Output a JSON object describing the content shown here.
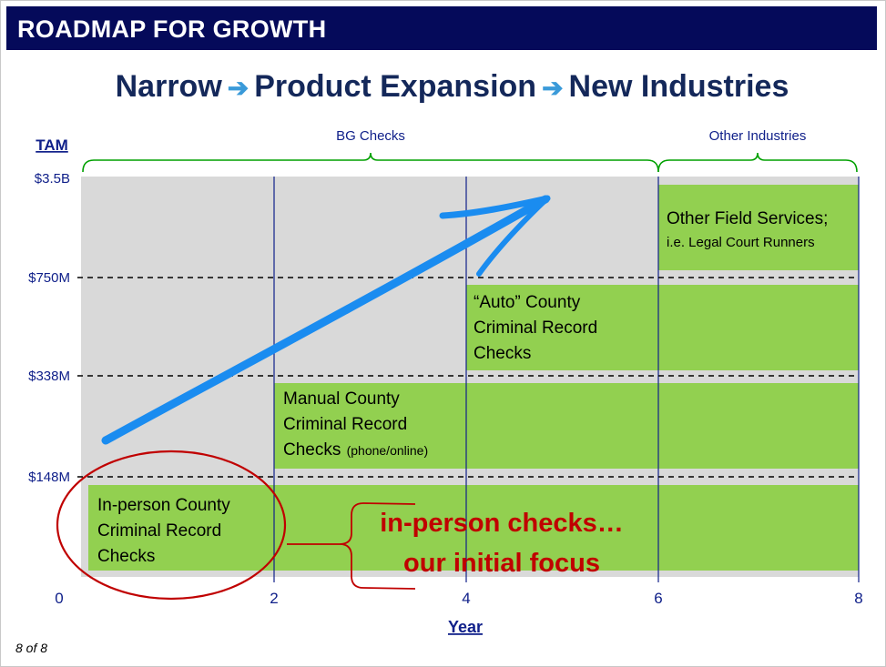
{
  "header": {
    "title": "ROADMAP FOR GROWTH"
  },
  "footer": {
    "page": "8 of 8"
  },
  "colors": {
    "header_bg": "#050a5a",
    "block_green": "#92d050",
    "plot_bg": "#d9d9d9",
    "axis_blue": "#10208a",
    "arrow_blue": "#1a8cf0",
    "annotation_red": "#c00000",
    "bracket_green": "#00a000"
  },
  "chart_data": {
    "type": "area",
    "title_parts": [
      "Narrow",
      "Product Expansion",
      "New Industries"
    ],
    "ylabel": "TAM",
    "xlabel": "Year",
    "x_ticks": [
      "0",
      "2",
      "4",
      "6",
      "8"
    ],
    "y_ticks": [
      "$148M",
      "$338M",
      "$750M",
      "$3.5B"
    ],
    "xlim": [
      0,
      8
    ],
    "brackets": [
      {
        "label": "BG Checks",
        "x_start": 0.25,
        "x_end": 6
      },
      {
        "label": "Other Industries",
        "x_start": 6,
        "x_end": 8
      }
    ],
    "blocks": [
      {
        "name": "in-person",
        "x_start": 0.3,
        "x_end": 2,
        "tier_bottom": 0,
        "tier_top": 1,
        "lines": [
          "In-person County",
          "Criminal Record",
          "Checks"
        ],
        "suffix": ""
      },
      {
        "name": "manual",
        "x_start": 2,
        "x_end": 8,
        "tier_bottom": 0,
        "tier_top": 2,
        "lines": [
          "Manual County",
          "Criminal Record",
          "Checks"
        ],
        "suffix": "(phone/online)"
      },
      {
        "name": "auto",
        "x_start": 4,
        "x_end": 8,
        "tier_bottom": 0,
        "tier_top": 3,
        "lines": [
          "“Auto” County",
          "Criminal Record",
          "Checks"
        ],
        "suffix": ""
      },
      {
        "name": "other-field-services",
        "x_start": 6,
        "x_end": 8,
        "tier_bottom": 0,
        "tier_top": 4,
        "lines": [
          "Other Field Services;"
        ],
        "sublines": [
          "i.e. Legal Court Runners"
        ],
        "suffix": ""
      }
    ],
    "annotation": {
      "lines": [
        "in-person checks…",
        "our initial focus"
      ]
    }
  }
}
